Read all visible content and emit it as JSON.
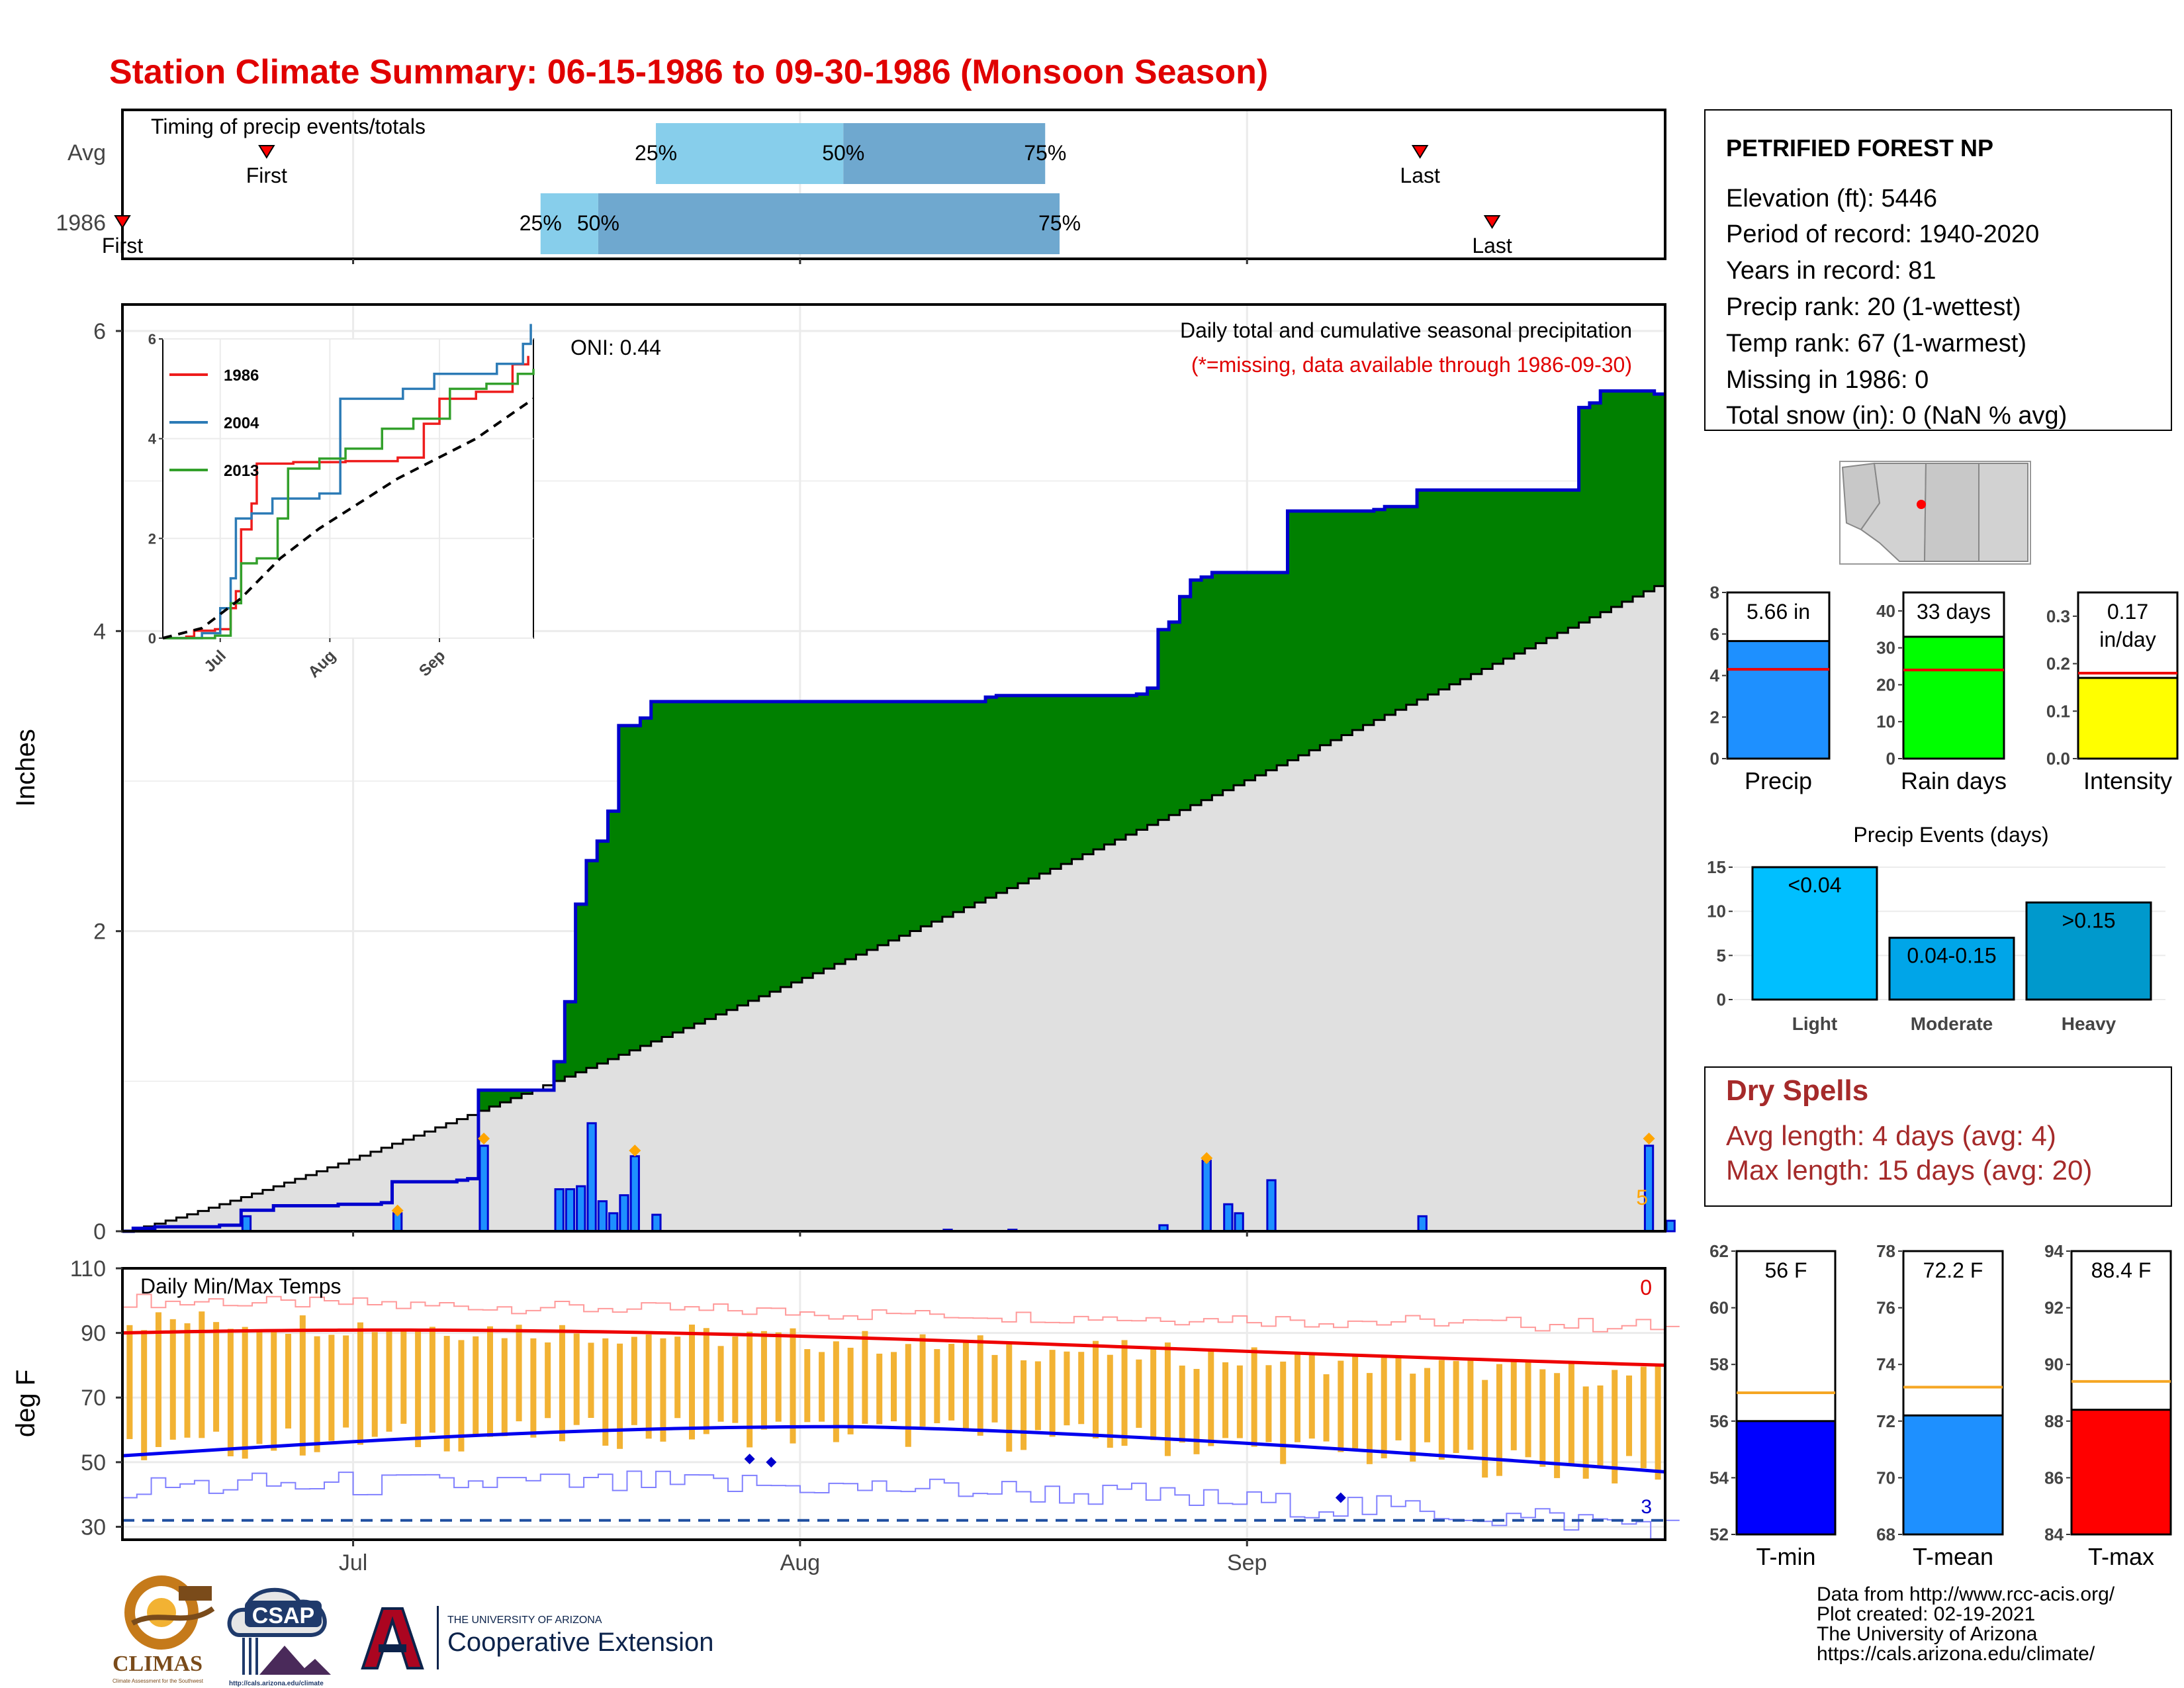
{
  "title": "Station Climate Summary: 06-15-1986 to 09-30-1986 (Monsoon Season)",
  "timing": {
    "title": "Timing of precip events/totals",
    "rows": [
      "Avg",
      "1986"
    ],
    "first_label": "First",
    "last_label": "Last",
    "avg": {
      "first": "06-25",
      "q25": "07-22",
      "q50": "08-04",
      "q75": "08-18",
      "last": "09-13"
    },
    "y1986": {
      "first": "06-15",
      "q25": "07-14",
      "q50": "07-18",
      "q75": "08-19",
      "last": "09-18"
    },
    "pct_labels": [
      "25%",
      "50%",
      "75%"
    ],
    "colors": {
      "light": "#87ceeb",
      "dark": "#6fa8cf"
    }
  },
  "station": {
    "name": "PETRIFIED FOREST NP",
    "lines": [
      "Elevation (ft): 5446",
      "Period of record: 1940-2020",
      "Years in record: 81",
      "Precip rank: 20 (1-wettest)",
      "Temp rank: 67 (1-warmest)",
      "Missing in 1986: 0",
      "Total snow (in): 0 (NaN % avg)"
    ]
  },
  "main_chart": {
    "ylabel": "Inches",
    "oni": "ONI: 0.44",
    "caption": "Daily total and cumulative seasonal precipitation",
    "caption_missing": "(*=missing, data available through 1986-09-30)",
    "count_label": "5",
    "yticks": [
      0,
      2,
      4,
      6
    ],
    "colors": {
      "cumulative_fill": "#008000",
      "average_fill": "#e0e0e0",
      "daily_bar": "#1e90ff",
      "line": "#0000cd",
      "marker": "#ffa500"
    }
  },
  "chart_data": [
    {
      "type": "area",
      "x_start": "1986-06-15",
      "x_end": "1986-09-30",
      "ylim": [
        0,
        6
      ],
      "series": [
        {
          "name": "1986",
          "cum_points": [
            [
              0,
              0
            ],
            [
              1,
              0.02
            ],
            [
              3,
              0.03
            ],
            [
              9,
              0.04
            ],
            [
              11,
              0.14
            ],
            [
              14,
              0.17
            ],
            [
              20,
              0.18
            ],
            [
              24,
              0.19
            ],
            [
              25,
              0.33
            ],
            [
              31,
              0.34
            ],
            [
              32,
              0.35
            ],
            [
              33,
              0.37
            ],
            [
              33,
              0.94
            ],
            [
              39,
              0.94
            ],
            [
              40,
              1.13
            ],
            [
              41,
              1.53
            ],
            [
              42,
              2.18
            ],
            [
              43,
              2.47
            ],
            [
              44,
              2.6
            ],
            [
              45,
              2.8
            ],
            [
              46,
              3.37
            ],
            [
              48,
              3.42
            ],
            [
              49,
              3.53
            ],
            [
              73,
              3.53
            ],
            [
              80,
              3.56
            ],
            [
              81,
              3.57
            ],
            [
              94,
              3.58
            ],
            [
              95,
              3.62
            ],
            [
              96,
              4.01
            ],
            [
              97,
              4.06
            ],
            [
              98,
              4.23
            ],
            [
              99,
              4.34
            ],
            [
              100,
              4.36
            ],
            [
              101,
              4.39
            ],
            [
              108,
              4.8
            ],
            [
              116,
              4.81
            ],
            [
              117,
              4.83
            ],
            [
              120,
              4.9
            ],
            [
              120,
              4.94
            ],
            [
              134,
              4.94
            ],
            [
              135,
              5.49
            ],
            [
              136,
              5.52
            ],
            [
              137,
              5.6
            ],
            [
              140,
              5.6
            ],
            [
              141,
              5.6
            ],
            [
              142,
              5.58
            ]
          ]
        },
        {
          "name": "Average",
          "avg_end": 4.3
        }
      ],
      "daily": [
        [
          11,
          0.1
        ],
        [
          25,
          0.12
        ],
        [
          33,
          0.57
        ],
        [
          40,
          0.28
        ],
        [
          41,
          0.28
        ],
        [
          42,
          0.3
        ],
        [
          43,
          0.72
        ],
        [
          44,
          0.2
        ],
        [
          45,
          0.12
        ],
        [
          46,
          0.24
        ],
        [
          47,
          0.5
        ],
        [
          49,
          0.11
        ],
        [
          76,
          0.01
        ],
        [
          82,
          0.01
        ],
        [
          96,
          0.04
        ],
        [
          100,
          0.47
        ],
        [
          102,
          0.18
        ],
        [
          103,
          0.12
        ],
        [
          106,
          0.34
        ],
        [
          120,
          0.1
        ],
        [
          141,
          0.57
        ],
        [
          143,
          0.07
        ]
      ],
      "daily_markers": [
        [
          25,
          0.12
        ],
        [
          33,
          0.6
        ],
        [
          47,
          0.52
        ],
        [
          100,
          0.47
        ],
        [
          141,
          0.6
        ]
      ]
    },
    {
      "type": "line",
      "title": "",
      "x_ticks": [
        "Jul",
        "Aug",
        "Sep"
      ],
      "ylim": [
        0,
        6
      ],
      "yticks": [
        0,
        2,
        4,
        6
      ],
      "legend": [
        "1986",
        "2004",
        "2013"
      ],
      "series_colors": [
        "#ee1c1c",
        "#2c7bb6",
        "#33a02c"
      ],
      "series": [
        {
          "name": "1986",
          "points": [
            [
              0,
              0
            ],
            [
              9,
              0.03
            ],
            [
              12,
              0.15
            ],
            [
              20,
              0.18
            ],
            [
              26,
              0.6
            ],
            [
              28,
              0.94
            ],
            [
              30,
              2.18
            ],
            [
              34,
              2.7
            ],
            [
              36,
              3.5
            ],
            [
              50,
              3.53
            ],
            [
              70,
              3.55
            ],
            [
              90,
              3.62
            ],
            [
              100,
              4.3
            ],
            [
              106,
              4.8
            ],
            [
              120,
              4.94
            ],
            [
              134,
              5.49
            ],
            [
              140,
              5.66
            ]
          ]
        },
        {
          "name": "2004",
          "points": [
            [
              0,
              0
            ],
            [
              15,
              0.1
            ],
            [
              22,
              0.6
            ],
            [
              26,
              1.2
            ],
            [
              28,
              2.4
            ],
            [
              34,
              2.5
            ],
            [
              42,
              2.8
            ],
            [
              60,
              2.9
            ],
            [
              68,
              4.8
            ],
            [
              84,
              4.8
            ],
            [
              92,
              5.0
            ],
            [
              104,
              5.3
            ],
            [
              128,
              5.5
            ],
            [
              138,
              5.9
            ],
            [
              141,
              6.3
            ]
          ]
        },
        {
          "name": "2013",
          "points": [
            [
              0,
              0
            ],
            [
              20,
              0.05
            ],
            [
              26,
              0.7
            ],
            [
              30,
              1.5
            ],
            [
              36,
              1.6
            ],
            [
              44,
              2.4
            ],
            [
              48,
              3.4
            ],
            [
              60,
              3.6
            ],
            [
              70,
              3.8
            ],
            [
              84,
              4.2
            ],
            [
              96,
              4.4
            ],
            [
              110,
              5.0
            ],
            [
              124,
              5.1
            ],
            [
              136,
              5.3
            ],
            [
              142,
              5.4
            ]
          ]
        },
        {
          "name": "Average",
          "dashed": true,
          "points": [
            [
              0,
              0
            ],
            [
              15,
              0.2
            ],
            [
              30,
              0.8
            ],
            [
              45,
              1.6
            ],
            [
              60,
              2.2
            ],
            [
              75,
              2.7
            ],
            [
              90,
              3.2
            ],
            [
              105,
              3.6
            ],
            [
              120,
              4.0
            ],
            [
              142,
              4.8
            ]
          ]
        }
      ]
    },
    {
      "type": "bar",
      "categories": [
        "Precip",
        "Rain days",
        "Intensity"
      ],
      "values": [
        5.66,
        33,
        0.17
      ],
      "avg_values": [
        4.3,
        24,
        0.18
      ],
      "labels": [
        "5.66 in",
        "33 days",
        "0.17 in/day"
      ],
      "ylims": [
        [
          0,
          8
        ],
        [
          0,
          45
        ],
        [
          0,
          0.35
        ]
      ],
      "yticks": [
        [
          0,
          2,
          4,
          6,
          8
        ],
        [
          0,
          10,
          20,
          30,
          40
        ],
        [
          0.0,
          0.1,
          0.2,
          0.3
        ]
      ],
      "colors": [
        "#1e90ff",
        "#00ff00",
        "#ffff00"
      ]
    },
    {
      "type": "bar",
      "title": "Precip Events (days)",
      "categories": [
        "Light",
        "Moderate",
        "Heavy"
      ],
      "values": [
        15,
        7,
        11
      ],
      "labels": [
        "<0.04",
        "0.04-0.15",
        ">0.15"
      ],
      "ylim": [
        0,
        15
      ],
      "yticks": [
        0,
        5,
        10,
        15
      ],
      "colors": [
        "#00bfff",
        "#00a5e8",
        "#0099cc"
      ]
    },
    {
      "type": "bar",
      "title": "Daily Min/Max Temps",
      "ylabel": "deg F",
      "ylim": [
        26,
        110
      ],
      "yticks": [
        30,
        50,
        70,
        90,
        110
      ],
      "freeze_line": 32,
      "count_labels": {
        "hot": "0",
        "cold": "3"
      },
      "tmax_avg_start": 90,
      "tmax_avg_end": 80,
      "tmin_avg_start": 52,
      "tmin_avg_peak": 61,
      "tmin_avg_end": 47,
      "record_max_start": 100,
      "record_max_end": 92,
      "record_min_start": 42,
      "record_min_end": 30
    },
    {
      "type": "bar",
      "categories": [
        "T-min",
        "T-mean",
        "T-max"
      ],
      "values": [
        56,
        72.2,
        88.4
      ],
      "avg_values": [
        57,
        73.2,
        89.4
      ],
      "labels": [
        "56 F",
        "72.2 F",
        "88.4 F"
      ],
      "ylims": [
        [
          52,
          62
        ],
        [
          68,
          78
        ],
        [
          84,
          94
        ]
      ],
      "yticks": [
        [
          52,
          54,
          56,
          58,
          60,
          62
        ],
        [
          68,
          70,
          72,
          74,
          76,
          78
        ],
        [
          84,
          86,
          88,
          90,
          92,
          94
        ]
      ],
      "colors": [
        "#0000ff",
        "#1e90ff",
        "#ff0000"
      ]
    }
  ],
  "dry_spells": {
    "title": "Dry Spells",
    "avg_length": "Avg length: 4 days (avg: 4)",
    "max_length": "Max length: 15 days (avg: 20)"
  },
  "x_ticks": [
    "Jul",
    "Aug",
    "Sep"
  ],
  "logos": {
    "climas": "CLIMAS",
    "climas_sub": "Climate Assessment for the Southwest",
    "csap": "CSAP",
    "csap_url": "http://cals.arizona.edu/climate",
    "ua_top": "THE UNIVERSITY OF ARIZONA",
    "ua_name": "Cooperative Extension"
  },
  "footer": [
    "Data from http://www.rcc-acis.org/",
    "Plot created: 02-19-2021",
    "The University of Arizona",
    "https://cals.arizona.edu/climate/"
  ]
}
